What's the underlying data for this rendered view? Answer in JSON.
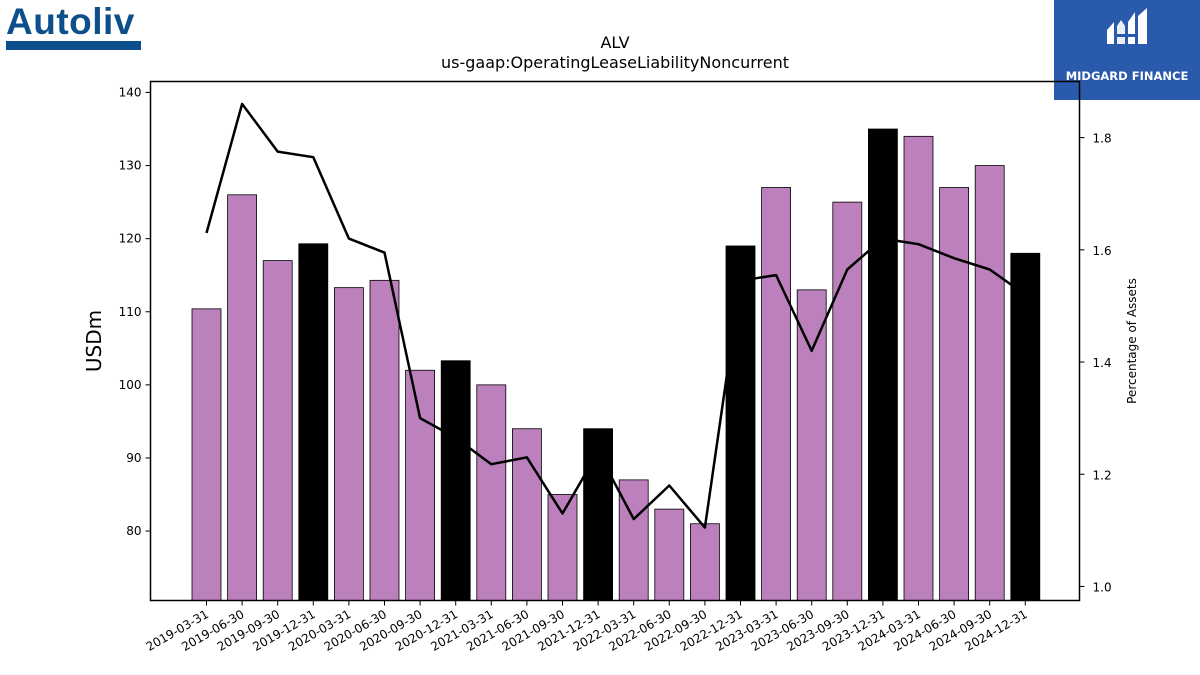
{
  "logos": {
    "left": {
      "text": "Autoliv",
      "color": "#0c4f8a"
    },
    "right": {
      "text": "MIDGARD FINANCE",
      "icon": "midgard-m-icon",
      "background": "#2a5aab"
    }
  },
  "chart_data": {
    "type": "bar",
    "title": "ALV",
    "subtitle": "us-gaap:OperatingLeaseLiabilityNoncurrent",
    "ylabel": "USDm",
    "y2label": "Percentage of Assets",
    "ylim": [
      70.5,
      141.5
    ],
    "y2lim": [
      0.975,
      1.9
    ],
    "yticks": [
      80,
      90,
      100,
      110,
      120,
      130,
      140
    ],
    "y2ticks": [
      1.0,
      1.2,
      1.4,
      1.6,
      1.8
    ],
    "grid": false,
    "categories": [
      "2019-03-31",
      "2019-06-30",
      "2019-09-30",
      "2019-12-31",
      "2020-03-31",
      "2020-06-30",
      "2020-09-30",
      "2020-12-31",
      "2021-03-31",
      "2021-06-30",
      "2021-09-30",
      "2021-12-31",
      "2022-03-31",
      "2022-06-30",
      "2022-09-30",
      "2022-12-31",
      "2023-03-31",
      "2023-06-30",
      "2023-09-30",
      "2023-12-31",
      "2024-03-31",
      "2024-06-30",
      "2024-09-30",
      "2024-12-31"
    ],
    "series": [
      {
        "type": "bar",
        "axis": "left",
        "values": [
          110.4,
          126,
          117,
          119.3,
          113.3,
          114.3,
          102,
          103.3,
          100,
          94,
          85,
          94,
          87,
          83,
          81,
          119,
          127,
          113,
          125,
          135,
          134,
          127,
          130,
          118
        ],
        "colors": {
          "default": "#bc80bd",
          "year_end": "#000000"
        }
      },
      {
        "type": "line",
        "axis": "right",
        "color": "#000000",
        "values": [
          1.63,
          1.86,
          1.775,
          1.765,
          1.62,
          1.595,
          1.3,
          1.265,
          1.218,
          1.23,
          1.13,
          1.24,
          1.12,
          1.18,
          1.105,
          1.545,
          1.555,
          1.42,
          1.565,
          1.62,
          1.61,
          1.585,
          1.565,
          1.52
        ]
      }
    ]
  }
}
